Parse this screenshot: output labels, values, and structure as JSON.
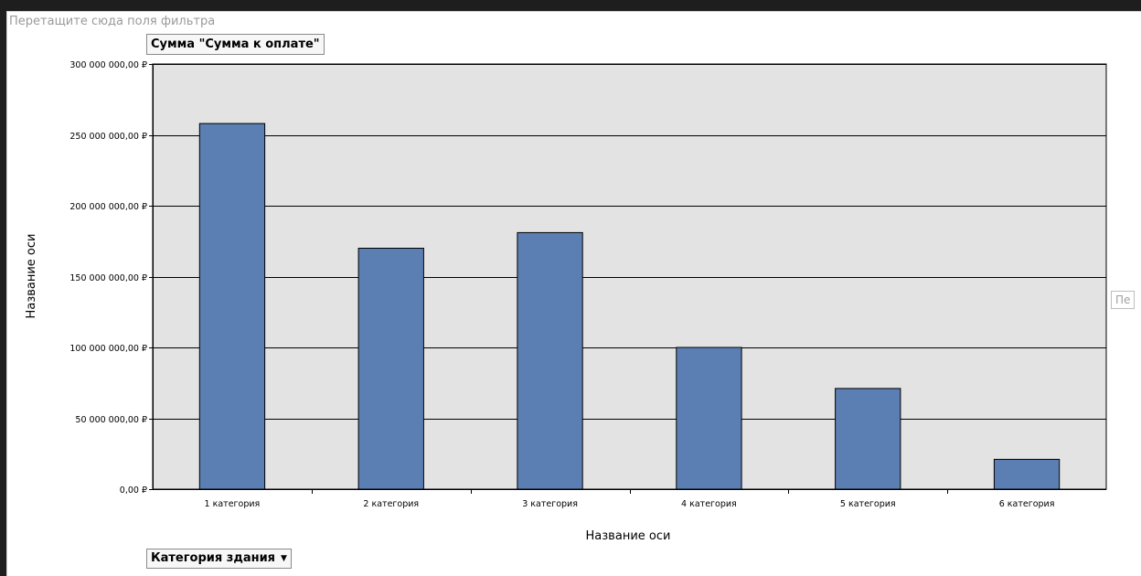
{
  "pivot": {
    "filter_drop_hint": "Перетащите сюда поля фильтра",
    "value_field": "Сумма \"Сумма к оплате\"",
    "series_drop_hint": "Пе",
    "axis_field": "Категория здания"
  },
  "chart_data": {
    "type": "bar",
    "title": "",
    "xlabel": "Название оси",
    "ylabel": "Название оси",
    "categories": [
      "1 категория",
      "2 категория",
      "3 категория",
      "4 категория",
      "5 категория",
      "6 категория"
    ],
    "values": [
      258000000,
      170000000,
      181000000,
      100000000,
      71000000,
      21000000
    ],
    "ylim": [
      0,
      300000000
    ],
    "yticks": [
      0,
      50000000,
      100000000,
      150000000,
      200000000,
      250000000,
      300000000
    ],
    "ytick_labels": [
      "0,00 ₽",
      "50 000 000,00 ₽",
      "100 000 000,00 ₽",
      "150 000 000,00 ₽",
      "200 000 000,00 ₽",
      "250 000 000,00 ₽",
      "300 000 000,00 ₽"
    ],
    "grid": true,
    "legend": "none",
    "colors": {
      "bar": "#5b7fb3",
      "bar_border": "#000000",
      "plot_bg": "#e3e3e3",
      "grid": "#000000"
    }
  }
}
